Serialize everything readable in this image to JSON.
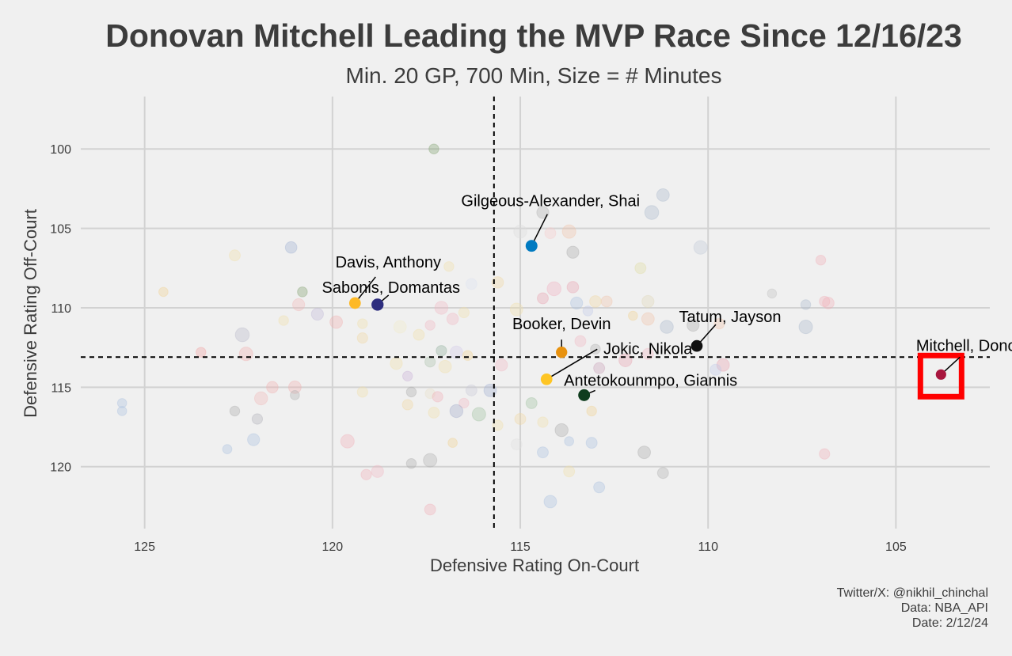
{
  "chart_data": {
    "type": "scatter",
    "title": "Donovan Mitchell Leading the MVP Race Since 12/16/23",
    "subtitle": "Min. 20 GP, 700 Min, Size = # Minutes",
    "xlabel": "Defensive Rating On-Court",
    "ylabel": "Defensive Rating Off-Court",
    "x_reversed": true,
    "y_reversed": true,
    "xlim": [
      126.7,
      102.5
    ],
    "ylim": [
      96.7,
      123.9
    ],
    "x_ticks": [
      125,
      120,
      115,
      110,
      105
    ],
    "y_ticks": [
      100,
      105,
      110,
      115,
      120
    ],
    "grid": true,
    "reference_lines": {
      "x": 115.7,
      "y": 113.1
    },
    "highlight_box": {
      "player": "Mitchell, Donovan",
      "color": "#ff0000"
    },
    "highlighted_players": [
      {
        "name": "Gilgeous-Alexander, Shai",
        "x": 114.7,
        "y": 106.1,
        "minutes": 1800,
        "color": "#007ac1"
      },
      {
        "name": "Davis, Anthony",
        "x": 119.4,
        "y": 109.7,
        "minutes": 1750,
        "color": "#fdb927"
      },
      {
        "name": "Sabonis, Domantas",
        "x": 118.8,
        "y": 109.8,
        "minutes": 1900,
        "color": "#2e2e7f"
      },
      {
        "name": "Booker, Devin",
        "x": 113.9,
        "y": 112.8,
        "minutes": 1650,
        "color": "#e8920f"
      },
      {
        "name": "Jokic, Nikola",
        "x": 114.3,
        "y": 114.5,
        "minutes": 1750,
        "color": "#fec524"
      },
      {
        "name": "Tatum, Jayson",
        "x": 110.3,
        "y": 112.4,
        "minutes": 1750,
        "color": "#111111"
      },
      {
        "name": "Antetokounmpo, Giannis",
        "x": 113.3,
        "y": 115.5,
        "minutes": 1800,
        "color": "#0f3d1e"
      },
      {
        "name": "Mitchell, Donovan",
        "x": 103.8,
        "y": 114.2,
        "minutes": 1400,
        "color": "#a8163e"
      }
    ],
    "background_players": [
      {
        "x": 117.3,
        "y": 100.0,
        "minutes": 800,
        "color": "#7fa06e"
      },
      {
        "x": 111.2,
        "y": 102.9,
        "minutes": 1300,
        "color": "#a9b6cc"
      },
      {
        "x": 111.5,
        "y": 104.0,
        "minutes": 1600,
        "color": "#a9b6cc"
      },
      {
        "x": 114.4,
        "y": 104.0,
        "minutes": 1200,
        "color": "#b0b0b0"
      },
      {
        "x": 115.0,
        "y": 105.2,
        "minutes": 1400,
        "color": "#dcdcdc"
      },
      {
        "x": 113.7,
        "y": 105.2,
        "minutes": 1500,
        "color": "#f0c4a8"
      },
      {
        "x": 114.2,
        "y": 105.3,
        "minutes": 1000,
        "color": "#f5cccc"
      },
      {
        "x": 110.2,
        "y": 106.2,
        "minutes": 1500,
        "color": "#c0c8d8"
      },
      {
        "x": 113.6,
        "y": 106.5,
        "minutes": 1200,
        "color": "#a9a9a9"
      },
      {
        "x": 121.1,
        "y": 106.2,
        "minutes": 1100,
        "color": "#9fb0d0"
      },
      {
        "x": 122.6,
        "y": 106.7,
        "minutes": 1000,
        "color": "#f2e0a8"
      },
      {
        "x": 107.0,
        "y": 107.0,
        "minutes": 800,
        "color": "#f0b0b8"
      },
      {
        "x": 111.8,
        "y": 107.5,
        "minutes": 1000,
        "color": "#e0dca0"
      },
      {
        "x": 116.9,
        "y": 107.4,
        "minutes": 800,
        "color": "#f2e0a8"
      },
      {
        "x": 115.6,
        "y": 108.4,
        "minutes": 1100,
        "color": "#f0d8a0"
      },
      {
        "x": 116.3,
        "y": 108.5,
        "minutes": 1000,
        "color": "#dde3f0"
      },
      {
        "x": 113.6,
        "y": 108.7,
        "minutes": 1100,
        "color": "#e8a0b0"
      },
      {
        "x": 114.1,
        "y": 108.8,
        "minutes": 1600,
        "color": "#f0b0c0"
      },
      {
        "x": 114.4,
        "y": 109.4,
        "minutes": 1000,
        "color": "#e8a0b0"
      },
      {
        "x": 120.8,
        "y": 109.0,
        "minutes": 800,
        "color": "#7f9f6a"
      },
      {
        "x": 124.5,
        "y": 109.0,
        "minutes": 700,
        "color": "#f0d090"
      },
      {
        "x": 120.9,
        "y": 109.8,
        "minutes": 1200,
        "color": "#f0b8b8"
      },
      {
        "x": 112.7,
        "y": 109.6,
        "minutes": 1000,
        "color": "#f0c4a8"
      },
      {
        "x": 111.6,
        "y": 109.6,
        "minutes": 1200,
        "color": "#e0d8b8"
      },
      {
        "x": 113.0,
        "y": 109.6,
        "minutes": 1100,
        "color": "#f0d8a0"
      },
      {
        "x": 108.3,
        "y": 109.1,
        "minutes": 700,
        "color": "#c0c0c0"
      },
      {
        "x": 113.5,
        "y": 109.7,
        "minutes": 1200,
        "color": "#a9c0e0"
      },
      {
        "x": 107.4,
        "y": 109.8,
        "minutes": 800,
        "color": "#a9b6cc"
      },
      {
        "x": 106.8,
        "y": 109.7,
        "minutes": 1100,
        "color": "#f0b0b8"
      },
      {
        "x": 106.9,
        "y": 109.6,
        "minutes": 900,
        "color": "#f0b0b8"
      },
      {
        "x": 115.1,
        "y": 110.1,
        "minutes": 1300,
        "color": "#f2e0a8"
      },
      {
        "x": 117.1,
        "y": 110.0,
        "minutes": 1400,
        "color": "#f0b8c4"
      },
      {
        "x": 113.2,
        "y": 110.2,
        "minutes": 800,
        "color": "#c0c8e8"
      },
      {
        "x": 120.4,
        "y": 110.4,
        "minutes": 1200,
        "color": "#c0b8d8"
      },
      {
        "x": 116.5,
        "y": 110.3,
        "minutes": 900,
        "color": "#f2e0a8"
      },
      {
        "x": 112.0,
        "y": 110.5,
        "minutes": 700,
        "color": "#f0d090"
      },
      {
        "x": 116.8,
        "y": 110.7,
        "minutes": 1100,
        "color": "#f0b8c4"
      },
      {
        "x": 111.6,
        "y": 110.7,
        "minutes": 1300,
        "color": "#f0c4a8"
      },
      {
        "x": 119.9,
        "y": 110.9,
        "minutes": 1300,
        "color": "#f0b0b0"
      },
      {
        "x": 121.3,
        "y": 110.8,
        "minutes": 800,
        "color": "#f2e0a8"
      },
      {
        "x": 119.2,
        "y": 111.0,
        "minutes": 800,
        "color": "#f2e0a8"
      },
      {
        "x": 118.2,
        "y": 111.2,
        "minutes": 1300,
        "color": "#f2eac8"
      },
      {
        "x": 117.4,
        "y": 111.1,
        "minutes": 800,
        "color": "#f0b8c4"
      },
      {
        "x": 111.1,
        "y": 111.2,
        "minutes": 1400,
        "color": "#a9b6cc"
      },
      {
        "x": 110.4,
        "y": 111.1,
        "minutes": 1200,
        "color": "#a9a9a9"
      },
      {
        "x": 109.7,
        "y": 111.0,
        "minutes": 900,
        "color": "#f0c4a8"
      },
      {
        "x": 107.4,
        "y": 111.2,
        "minutes": 1500,
        "color": "#a9b6cc"
      },
      {
        "x": 117.7,
        "y": 111.7,
        "minutes": 1000,
        "color": "#f0e0a8"
      },
      {
        "x": 122.4,
        "y": 111.7,
        "minutes": 1600,
        "color": "#b8b8c8"
      },
      {
        "x": 119.2,
        "y": 111.9,
        "minutes": 900,
        "color": "#f0d8a0"
      },
      {
        "x": 113.4,
        "y": 112.1,
        "minutes": 1000,
        "color": "#f0b8c4"
      },
      {
        "x": 122.3,
        "y": 112.9,
        "minutes": 1500,
        "color": "#f0b0b0"
      },
      {
        "x": 123.5,
        "y": 112.8,
        "minutes": 800,
        "color": "#f0a0a0"
      },
      {
        "x": 117.1,
        "y": 112.7,
        "minutes": 900,
        "color": "#8fb09a"
      },
      {
        "x": 116.7,
        "y": 112.8,
        "minutes": 1300,
        "color": "#d0c8e8"
      },
      {
        "x": 116.4,
        "y": 113.0,
        "minutes": 800,
        "color": "#f0d090"
      },
      {
        "x": 113.0,
        "y": 112.6,
        "minutes": 800,
        "color": "#b0b0b0"
      },
      {
        "x": 111.6,
        "y": 112.9,
        "minutes": 1000,
        "color": "#f0b8c4"
      },
      {
        "x": 112.2,
        "y": 113.3,
        "minutes": 1400,
        "color": "#e8a0b0"
      },
      {
        "x": 117.4,
        "y": 113.4,
        "minutes": 900,
        "color": "#a9c0a9"
      },
      {
        "x": 117.0,
        "y": 113.7,
        "minutes": 1300,
        "color": "#f2e0a8"
      },
      {
        "x": 118.3,
        "y": 113.5,
        "minutes": 1200,
        "color": "#f0e0a8"
      },
      {
        "x": 115.5,
        "y": 113.6,
        "minutes": 1200,
        "color": "#f0b8c4"
      },
      {
        "x": 112.9,
        "y": 113.8,
        "minutes": 1000,
        "color": "#c8a0b8"
      },
      {
        "x": 109.6,
        "y": 113.6,
        "minutes": 1300,
        "color": "#e8a0b0"
      },
      {
        "x": 109.8,
        "y": 113.9,
        "minutes": 1000,
        "color": "#c0c8e8"
      },
      {
        "x": 118.0,
        "y": 114.3,
        "minutes": 800,
        "color": "#c8b0d8"
      },
      {
        "x": 121.6,
        "y": 115.0,
        "minutes": 1100,
        "color": "#f0b0b0"
      },
      {
        "x": 121.0,
        "y": 115.0,
        "minutes": 1300,
        "color": "#f0b0b0"
      },
      {
        "x": 121.0,
        "y": 115.5,
        "minutes": 700,
        "color": "#b0b0b0"
      },
      {
        "x": 117.9,
        "y": 115.3,
        "minutes": 800,
        "color": "#a9a9a9"
      },
      {
        "x": 117.4,
        "y": 115.4,
        "minutes": 800,
        "color": "#e8e0c8"
      },
      {
        "x": 119.2,
        "y": 115.3,
        "minutes": 900,
        "color": "#f2e0a8"
      },
      {
        "x": 116.3,
        "y": 115.2,
        "minutes": 1000,
        "color": "#c8c8d8"
      },
      {
        "x": 115.8,
        "y": 115.2,
        "minutes": 1300,
        "color": "#a0b0d0"
      },
      {
        "x": 121.9,
        "y": 115.7,
        "minutes": 1400,
        "color": "#f0b8b8"
      },
      {
        "x": 117.2,
        "y": 115.6,
        "minutes": 900,
        "color": "#f0b0b8"
      },
      {
        "x": 116.5,
        "y": 116.0,
        "minutes": 800,
        "color": "#f0b8c4"
      },
      {
        "x": 125.6,
        "y": 116.0,
        "minutes": 700,
        "color": "#a9c0e0"
      },
      {
        "x": 125.6,
        "y": 116.5,
        "minutes": 700,
        "color": "#a9c0e0"
      },
      {
        "x": 114.7,
        "y": 116.0,
        "minutes": 1000,
        "color": "#9fc09f"
      },
      {
        "x": 118.0,
        "y": 116.1,
        "minutes": 900,
        "color": "#f0d8a0"
      },
      {
        "x": 113.1,
        "y": 116.5,
        "minutes": 800,
        "color": "#f0d090"
      },
      {
        "x": 122.6,
        "y": 116.5,
        "minutes": 800,
        "color": "#a9a9a9"
      },
      {
        "x": 117.3,
        "y": 116.6,
        "minutes": 1000,
        "color": "#f0e0a8"
      },
      {
        "x": 116.7,
        "y": 116.5,
        "minutes": 1400,
        "color": "#a0a8c8"
      },
      {
        "x": 116.1,
        "y": 116.7,
        "minutes": 1500,
        "color": "#9fc09f"
      },
      {
        "x": 122.0,
        "y": 117.0,
        "minutes": 900,
        "color": "#b0b0b8"
      },
      {
        "x": 115.0,
        "y": 117.0,
        "minutes": 1000,
        "color": "#f0d8a0"
      },
      {
        "x": 115.6,
        "y": 117.4,
        "minutes": 900,
        "color": "#f2e0a8"
      },
      {
        "x": 114.4,
        "y": 117.2,
        "minutes": 900,
        "color": "#f2e0a8"
      },
      {
        "x": 113.9,
        "y": 117.7,
        "minutes": 1400,
        "color": "#a9a9a9"
      },
      {
        "x": 122.1,
        "y": 118.3,
        "minutes": 1200,
        "color": "#a9c0e0"
      },
      {
        "x": 119.6,
        "y": 118.4,
        "minutes": 1500,
        "color": "#f0b0b8"
      },
      {
        "x": 116.8,
        "y": 118.5,
        "minutes": 700,
        "color": "#f0d090"
      },
      {
        "x": 115.1,
        "y": 118.6,
        "minutes": 1000,
        "color": "#e0e0e0"
      },
      {
        "x": 113.7,
        "y": 118.4,
        "minutes": 700,
        "color": "#a9c0e0"
      },
      {
        "x": 113.1,
        "y": 118.5,
        "minutes": 1000,
        "color": "#a9c0e0"
      },
      {
        "x": 122.8,
        "y": 118.9,
        "minutes": 700,
        "color": "#a9c0e0"
      },
      {
        "x": 114.4,
        "y": 119.1,
        "minutes": 1000,
        "color": "#a9c0e0"
      },
      {
        "x": 111.7,
        "y": 119.1,
        "minutes": 1300,
        "color": "#a9a9a9"
      },
      {
        "x": 106.9,
        "y": 119.2,
        "minutes": 900,
        "color": "#f0b0b8"
      },
      {
        "x": 117.4,
        "y": 119.6,
        "minutes": 1500,
        "color": "#b0b0b0"
      },
      {
        "x": 117.9,
        "y": 119.8,
        "minutes": 800,
        "color": "#a9a9a9"
      },
      {
        "x": 118.8,
        "y": 120.3,
        "minutes": 1200,
        "color": "#f0b8c4"
      },
      {
        "x": 119.1,
        "y": 120.5,
        "minutes": 900,
        "color": "#f0b0b8"
      },
      {
        "x": 113.7,
        "y": 120.3,
        "minutes": 1000,
        "color": "#f2e0a8"
      },
      {
        "x": 111.2,
        "y": 120.4,
        "minutes": 1000,
        "color": "#b0b0b0"
      },
      {
        "x": 112.9,
        "y": 121.3,
        "minutes": 1000,
        "color": "#a9c0e0"
      },
      {
        "x": 114.2,
        "y": 122.2,
        "minutes": 1300,
        "color": "#a9c0e0"
      },
      {
        "x": 117.4,
        "y": 122.7,
        "minutes": 1000,
        "color": "#f0b0b8"
      }
    ],
    "caption_lines": [
      "Twitter/X: @nikhil_chinchal",
      "Data: NBA_API",
      "Date: 2/12/24"
    ]
  }
}
